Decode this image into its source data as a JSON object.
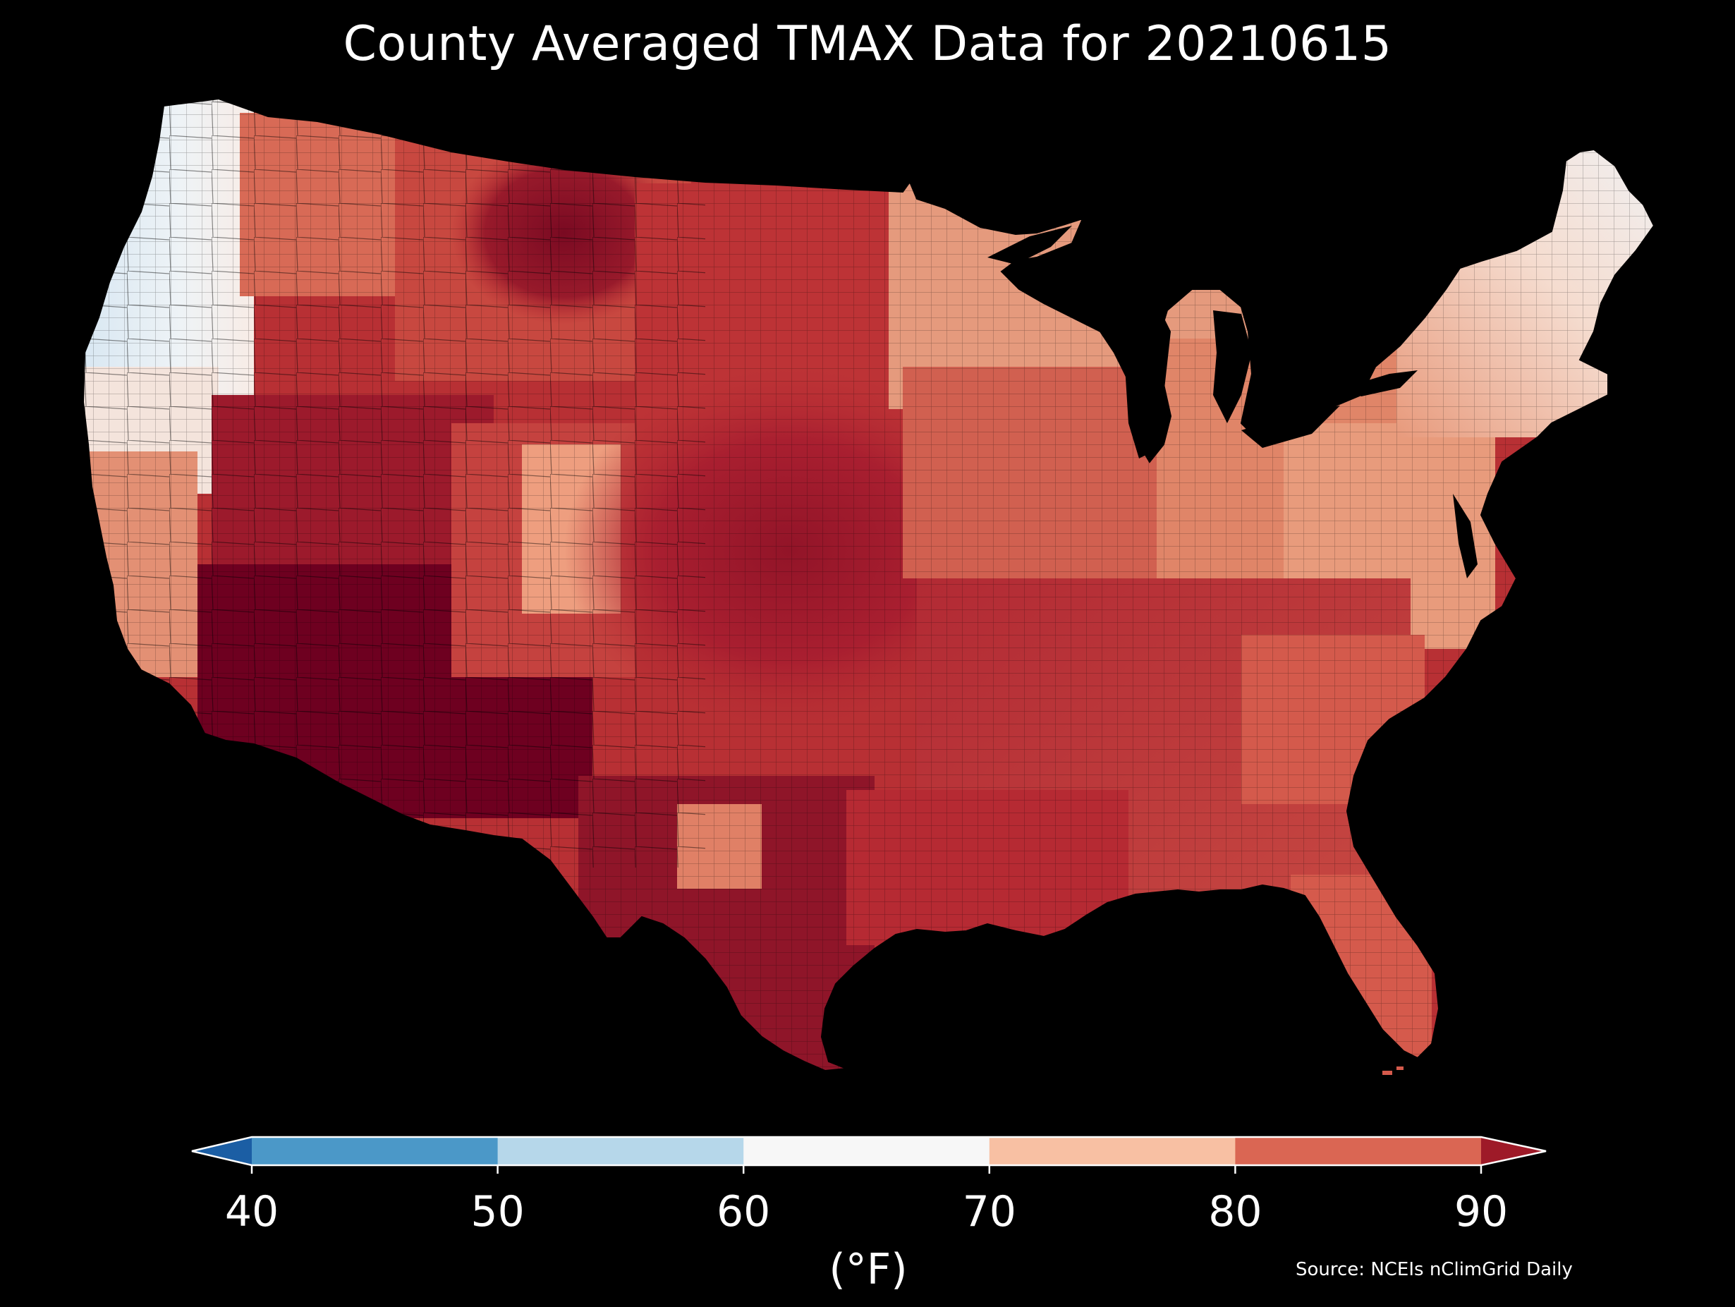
{
  "title": "County Averaged TMAX Data for 20210615",
  "colorbar": {
    "unit_label": "(°F)",
    "ticks": [
      "40",
      "50",
      "60",
      "70",
      "80",
      "90"
    ],
    "bins": [
      {
        "range": "<40",
        "color": "#1b5ea4"
      },
      {
        "range": "40-50",
        "color": "#4b98c8"
      },
      {
        "range": "50-60",
        "color": "#b6d7ea"
      },
      {
        "range": "60-70",
        "color": "#f7f7f7"
      },
      {
        "range": "70-80",
        "color": "#f8c0a3"
      },
      {
        "range": "80-90",
        "color": "#da6653"
      },
      {
        "range": ">90",
        "color": "#9e1a28"
      }
    ]
  },
  "source": "Source: NCEIs nClimGrid Daily",
  "map": {
    "region": "Contiguous United States",
    "variable": "TMAX",
    "date": "20210615",
    "background": "#000000",
    "regional_fill": {
      "pacific_northwest_coast": "#dce9f3",
      "california_oregon_coast": "#f6ebe6",
      "northern_rockies": "#d26050",
      "great_basin_desert_southwest": "#8c0f26",
      "southwest_deserts": "#6f0020",
      "great_plains": "#b72e33",
      "central_plains_core": "#a11c2d",
      "midwest": "#c94b41",
      "great_lakes_upper_midwest": "#e9a283",
      "northeast": "#f4e7e2",
      "mid_atlantic": "#de7e64",
      "appalachians": "#eea98a",
      "southeast": "#c13c3b",
      "gulf_coast_texas": "#8e1429",
      "florida_peninsula": "#d4574b",
      "colorado_high_terrain": "#ef9f7d"
    }
  }
}
